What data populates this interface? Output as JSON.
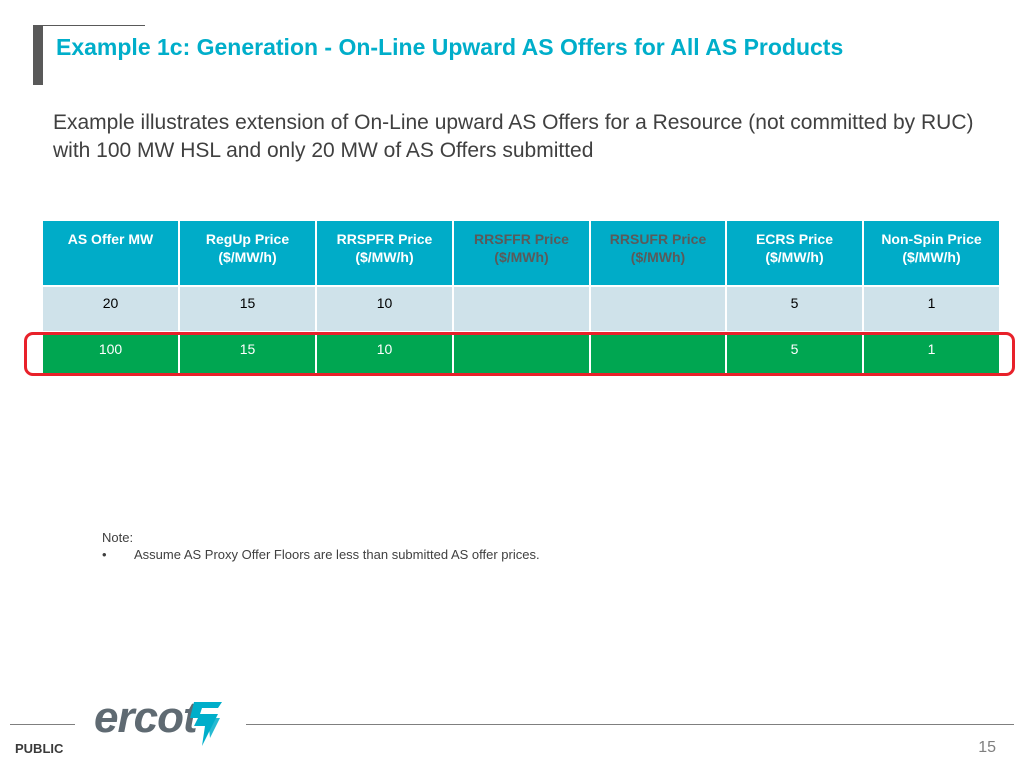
{
  "slide": {
    "title": "Example 1c: Generation - On-Line Upward AS Offers for All AS Products",
    "intro": "Example illustrates extension of On-Line upward AS Offers for a Resource (not committed by RUC) with 100 MW HSL and only 20 MW of AS Offers submitted"
  },
  "table": {
    "headers": [
      {
        "line1": "AS Offer MW",
        "line2": ""
      },
      {
        "line1": "RegUp Price",
        "line2": "($/MW/h)"
      },
      {
        "line1": "RRSPFR Price",
        "line2": "($/MW/h)"
      },
      {
        "line1": "RRSFFR Price",
        "line2": "($/MWh)"
      },
      {
        "line1": "RRSUFR Price",
        "line2": "($/MWh)"
      },
      {
        "line1": "ECRS Price",
        "line2": "($/MW/h)"
      },
      {
        "line1": "Non-Spin Price",
        "line2": "($/MW/h)"
      }
    ],
    "rows": [
      [
        "20",
        "15",
        "10",
        "",
        "",
        "5",
        "1"
      ],
      [
        "100",
        "15",
        "10",
        "",
        "",
        "5",
        "1"
      ]
    ]
  },
  "note": {
    "label": "Note:",
    "bullet": "•",
    "text": "Assume AS Proxy Offer Floors are less than submitted AS offer prices."
  },
  "footer": {
    "logo_text": "ercot",
    "classification": "PUBLIC",
    "page_number": "15"
  },
  "colors": {
    "title": "#00aeca",
    "header_bg": "#00acc8",
    "row_light": "#cfe2ea",
    "row_green": "#00a651",
    "highlight": "#e8212a",
    "logo": "#5f6a72",
    "logo_mark": "#00aeca"
  }
}
